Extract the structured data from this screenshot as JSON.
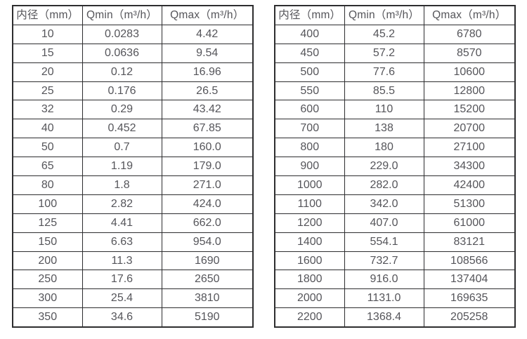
{
  "colors": {
    "background": "#ffffff",
    "table_border": "#2d2d2f",
    "text": "#55555a"
  },
  "tables": [
    {
      "name": "flow-range-small-diameters",
      "headers": [
        "内径（mm）",
        "Qmin（m³/h）",
        "Qmax（m³/h）"
      ],
      "rows": [
        [
          "10",
          "0.0283",
          "4.42"
        ],
        [
          "15",
          "0.0636",
          "9.54"
        ],
        [
          "20",
          "0.12",
          "16.96"
        ],
        [
          "25",
          "0.176",
          "26.5"
        ],
        [
          "32",
          "0.29",
          "43.42"
        ],
        [
          "40",
          "0.452",
          "67.85"
        ],
        [
          "50",
          "0.7",
          "160.0"
        ],
        [
          "65",
          "1.19",
          "179.0"
        ],
        [
          "80",
          "1.8",
          "271.0"
        ],
        [
          "100",
          "2.82",
          "424.0"
        ],
        [
          "125",
          "4.41",
          "662.0"
        ],
        [
          "150",
          "6.63",
          "954.0"
        ],
        [
          "200",
          "11.3",
          "1690"
        ],
        [
          "250",
          "17.6",
          "2650"
        ],
        [
          "300",
          "25.4",
          "3810"
        ],
        [
          "350",
          "34.6",
          "5190"
        ]
      ]
    },
    {
      "name": "flow-range-large-diameters",
      "headers": [
        "内径（mm）",
        "Qmin（m³/h）",
        "Qmax（m³/h）"
      ],
      "rows": [
        [
          "400",
          "45.2",
          "6780"
        ],
        [
          "450",
          "57.2",
          "8570"
        ],
        [
          "500",
          "77.6",
          "10600"
        ],
        [
          "550",
          "85.5",
          "12800"
        ],
        [
          "600",
          "110",
          "15200"
        ],
        [
          "700",
          "138",
          "20700"
        ],
        [
          "800",
          "180",
          "27100"
        ],
        [
          "900",
          "229.0",
          "34300"
        ],
        [
          "1000",
          "282.0",
          "42400"
        ],
        [
          "1100",
          "342.0",
          "51300"
        ],
        [
          "1200",
          "407.0",
          "61000"
        ],
        [
          "1400",
          "554.1",
          "83121"
        ],
        [
          "1600",
          "732.7",
          "108566"
        ],
        [
          "1800",
          "916.0",
          "137404"
        ],
        [
          "2000",
          "1131.0",
          "169635"
        ],
        [
          "2200",
          "1368.4",
          "205258"
        ]
      ]
    }
  ]
}
